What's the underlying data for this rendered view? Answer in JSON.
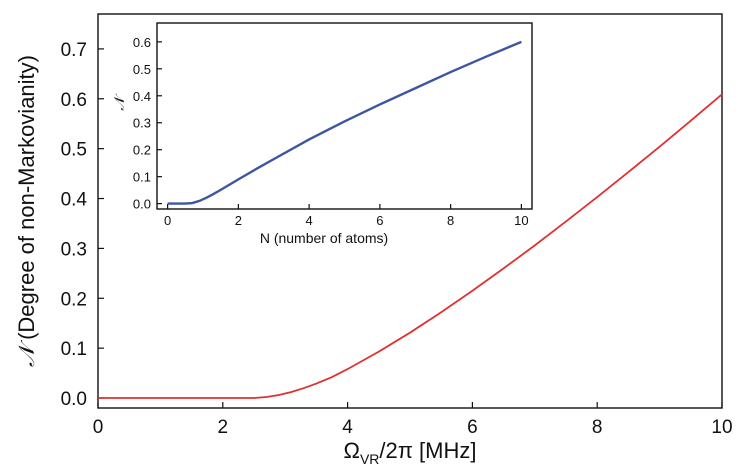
{
  "chart_data": [
    {
      "type": "line",
      "role": "main",
      "xlabel_symbol": "Ω",
      "xlabel_sub": "VR",
      "xlabel_rest": "/2π [MHz]",
      "ylabel_symbol": "𝒩",
      "ylabel": "(Degree of non-Markovianity)",
      "xlim": [
        0,
        10
      ],
      "ylim": [
        -0.02,
        0.77
      ],
      "xticks": [
        0,
        2,
        4,
        6,
        8,
        10
      ],
      "yticks": [
        0.0,
        0.1,
        0.2,
        0.3,
        0.4,
        0.5,
        0.6,
        0.7
      ],
      "ytick_labels": [
        "0.0",
        "0.1",
        "0.2",
        "0.3",
        "0.4",
        "0.5",
        "0.6",
        "0.7"
      ],
      "grid": false,
      "series": [
        {
          "color": "#e03030",
          "x": [
            0,
            1,
            2,
            2.5,
            2.7,
            2.9,
            3.1,
            3.3,
            3.5,
            3.75,
            4.0,
            4.5,
            5.0,
            5.5,
            6.0,
            6.5,
            7.0,
            7.5,
            8.0,
            8.5,
            9.0,
            9.5,
            10.0
          ],
          "y": [
            0,
            0,
            0,
            0,
            0.002,
            0.006,
            0.012,
            0.02,
            0.029,
            0.042,
            0.058,
            0.093,
            0.131,
            0.172,
            0.215,
            0.26,
            0.306,
            0.354,
            0.403,
            0.453,
            0.504,
            0.556,
            0.609
          ]
        }
      ]
    },
    {
      "type": "line",
      "role": "inset",
      "xlabel": "N (number of atoms)",
      "ylabel_symbol": "𝒩",
      "xlim": [
        -0.3,
        10.3
      ],
      "ylim": [
        -0.02,
        0.67
      ],
      "xticks": [
        0,
        2,
        4,
        6,
        8,
        10
      ],
      "yticks": [
        0.0,
        0.1,
        0.2,
        0.3,
        0.4,
        0.5,
        0.6
      ],
      "ytick_labels": [
        "0.0",
        "0.1",
        "0.2",
        "0.3",
        "0.4",
        "0.5",
        "0.6"
      ],
      "grid": false,
      "series": [
        {
          "color": "#3e55a0",
          "x": [
            0,
            0.5,
            0.7,
            0.9,
            1.1,
            1.3,
            1.5,
            2,
            2.5,
            3,
            4,
            5,
            6,
            7,
            8,
            9,
            10
          ],
          "y": [
            0,
            0,
            0.002,
            0.01,
            0.022,
            0.036,
            0.051,
            0.09,
            0.128,
            0.165,
            0.238,
            0.305,
            0.368,
            0.428,
            0.488,
            0.545,
            0.6
          ]
        }
      ]
    }
  ]
}
